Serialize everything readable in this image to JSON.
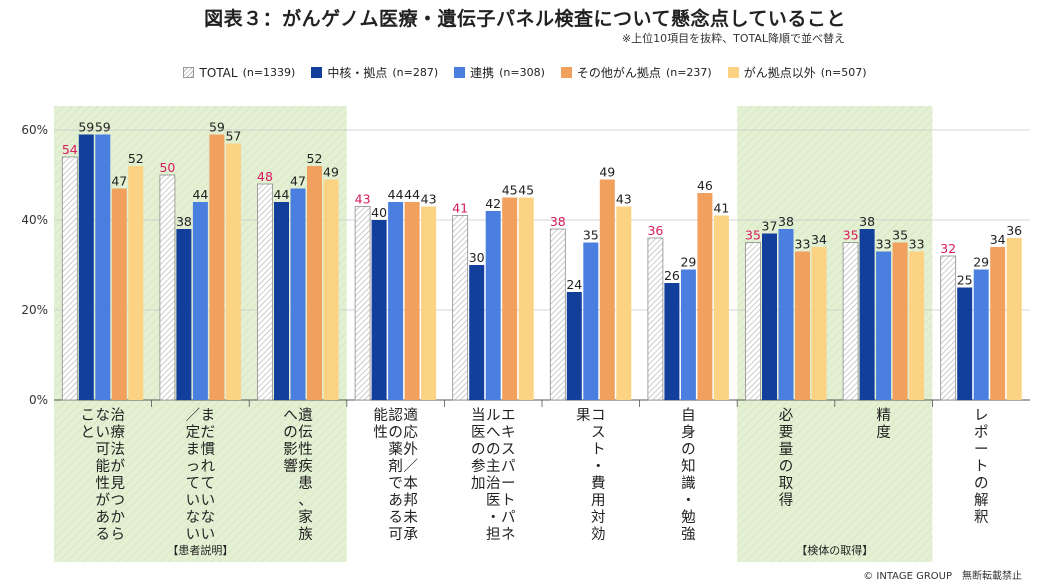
{
  "title": "図表３：がんゲノム医療・遺伝子パネル検査について懸念点していること",
  "note": "※上位10項目を抜粋、TOTAL降順で並べ替え",
  "copyright": "© INTAGE GROUP　無断転載禁止",
  "colors": {
    "total_border": "#8c8c8c",
    "total_hatch": "#b8b8b8",
    "total_label": "#d81b60",
    "core": "#123f9c",
    "renkei": "#4a7fe0",
    "other": "#f2a05e",
    "outside": "#fcd283",
    "highlight_bg": "#e4f0d4",
    "grid": "#c8c8c8",
    "axis": "#555555"
  },
  "chart_data": {
    "type": "bar",
    "ylim": [
      0,
      60
    ],
    "yticks": [
      "0%",
      "20%",
      "40%",
      "60%"
    ],
    "ytick_values": [
      0,
      20,
      40,
      60
    ],
    "grid": true,
    "legend_position": "top",
    "categories": [
      "治療法が見つからない可能性があること",
      "まだ慣れていない／定まっていない",
      "遺伝性疾患、家族への影響",
      "適応外／本邦未承認の薬剤である可能性",
      "エキスパートパネルへの主治医・担当医の参加",
      "コスト・費用対効果",
      "自身の知識・勉強",
      "必要量の取得",
      "精度",
      "レポートの解釈"
    ],
    "series": [
      {
        "name": "TOTAL",
        "n": "(n=1339)",
        "color_key": "total",
        "values": [
          54,
          50,
          48,
          43,
          41,
          38,
          36,
          35,
          35,
          32
        ]
      },
      {
        "name": "中核・拠点",
        "n": "(n=287)",
        "color_key": "core",
        "values": [
          59,
          38,
          44,
          40,
          30,
          24,
          26,
          37,
          38,
          25
        ]
      },
      {
        "name": "連携",
        "n": "(n=308)",
        "color_key": "renkei",
        "values": [
          59,
          44,
          47,
          44,
          42,
          35,
          29,
          38,
          33,
          29
        ]
      },
      {
        "name": "その他がん拠点",
        "n": "(n=237)",
        "color_key": "other",
        "values": [
          47,
          59,
          52,
          44,
          45,
          49,
          46,
          33,
          35,
          34
        ]
      },
      {
        "name": "がん拠点以外",
        "n": "(n=507)",
        "color_key": "outside",
        "values": [
          52,
          57,
          49,
          43,
          45,
          43,
          41,
          34,
          33,
          36
        ]
      }
    ],
    "groups": [
      {
        "label": "【患者説明】",
        "start": 0,
        "end": 2
      },
      {
        "label": "【検体の取得】",
        "start": 7,
        "end": 8
      }
    ]
  }
}
